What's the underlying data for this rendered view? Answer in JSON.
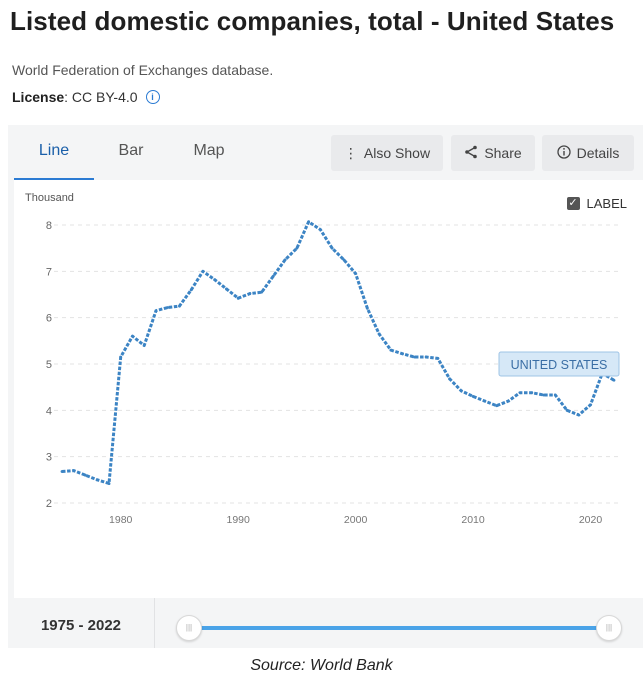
{
  "header": {
    "title": "Listed domestic companies, total - United States",
    "source": "World Federation of Exchanges database.",
    "license_label": "License",
    "license_value": " : CC BY-4.0",
    "info_icon": "info-icon"
  },
  "toolbar": {
    "tabs": [
      {
        "label": "Line",
        "active": true
      },
      {
        "label": "Bar",
        "active": false
      },
      {
        "label": "Map",
        "active": false
      }
    ],
    "also_show": "Also Show",
    "share": "Share",
    "details": "Details"
  },
  "label_toggle": {
    "label": "LABEL",
    "checked": true
  },
  "range": {
    "label": "1975 - 2022"
  },
  "footer": {
    "source": "Source: World Bank"
  },
  "colors": {
    "line": "#3c84c4",
    "accent": "#2b7bd3",
    "callout_bg": "#d6e8f7",
    "callout_border": "#9fc4e6"
  },
  "chart_data": {
    "type": "line",
    "ylabel": "Thousand",
    "ylim": [
      2,
      8
    ],
    "yticks": [
      2,
      3,
      4,
      5,
      6,
      7,
      8
    ],
    "xlim": [
      1975,
      2022
    ],
    "xticks": [
      1980,
      1990,
      2000,
      2010,
      2020
    ],
    "grid": true,
    "series": [
      {
        "name": "UNITED STATES",
        "x": [
          1975,
          1976,
          1977,
          1978,
          1979,
          1980,
          1981,
          1982,
          1983,
          1984,
          1985,
          1986,
          1987,
          1988,
          1989,
          1990,
          1991,
          1992,
          1993,
          1994,
          1995,
          1996,
          1997,
          1998,
          1999,
          2000,
          2001,
          2002,
          2003,
          2004,
          2005,
          2006,
          2007,
          2008,
          2009,
          2010,
          2011,
          2012,
          2013,
          2014,
          2015,
          2016,
          2017,
          2018,
          2019,
          2020,
          2021,
          2022
        ],
        "values": [
          2.68,
          2.7,
          2.6,
          2.5,
          2.42,
          5.15,
          5.6,
          5.4,
          6.15,
          6.22,
          6.25,
          6.6,
          7.0,
          6.82,
          6.62,
          6.42,
          6.52,
          6.55,
          6.9,
          7.25,
          7.5,
          8.07,
          7.9,
          7.5,
          7.25,
          6.95,
          6.2,
          5.65,
          5.3,
          5.22,
          5.15,
          5.15,
          5.12,
          4.68,
          4.42,
          4.3,
          4.2,
          4.1,
          4.2,
          4.38,
          4.38,
          4.33,
          4.33,
          4.0,
          3.9,
          4.12,
          4.8,
          4.65
        ]
      }
    ]
  }
}
